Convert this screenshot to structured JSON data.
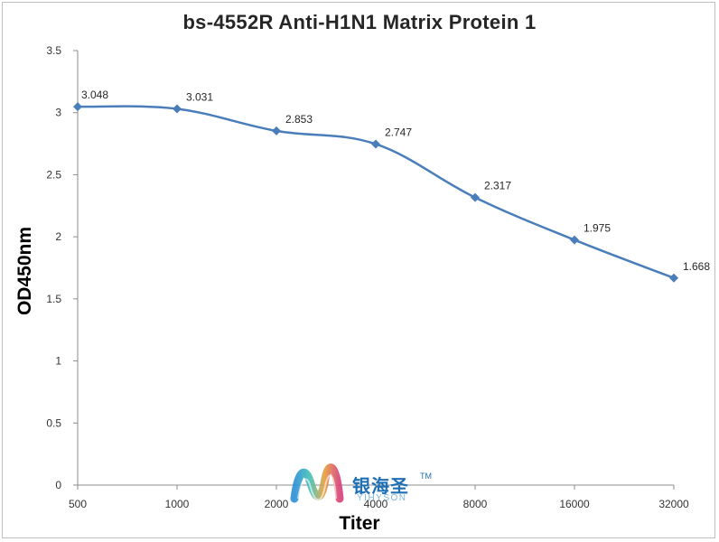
{
  "chart_data": {
    "type": "line",
    "title": "bs-4552R Anti-H1N1 Matrix Protein 1",
    "xlabel": "Titer",
    "ylabel": "OD450nm",
    "categories": [
      "500",
      "1000",
      "2000",
      "4000",
      "8000",
      "16000",
      "32000"
    ],
    "series": [
      {
        "values": [
          3.048,
          3.031,
          2.853,
          2.747,
          2.317,
          1.975,
          1.668
        ]
      }
    ],
    "data_labels": [
      "3.048",
      "3.031",
      "2.853",
      "2.747",
      "2.317",
      "1.975",
      "1.668"
    ],
    "y_ticks": [
      "0",
      "0.5",
      "1",
      "1.5",
      "2",
      "2.5",
      "3",
      "3.5"
    ],
    "ylim": [
      0,
      3.5
    ],
    "grid": false,
    "legend": "none",
    "line_color": "#4a7ebb",
    "marker_color": "#4a7ebb"
  },
  "watermark": {
    "name_cn": "银海圣",
    "trademark": "TM",
    "name_en": "YIHYSON"
  }
}
